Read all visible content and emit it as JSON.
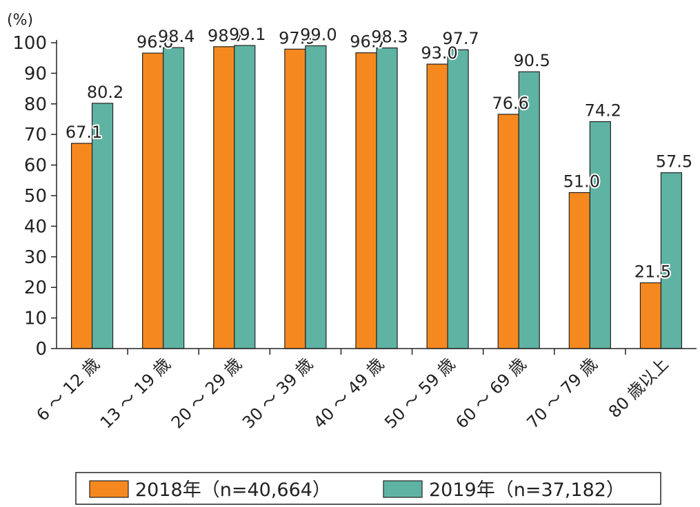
{
  "chart_data": {
    "type": "bar",
    "unit_label": "(%)",
    "categories": [
      "6 ～ 12 歳",
      "13 ～ 19 歳",
      "20 ～ 29 歳",
      "30 ～ 39 歳",
      "40 ～ 49 歳",
      "50 ～ 59 歳",
      "60 ～ 69 歳",
      "70 ～ 79 歳",
      "80 歳以上"
    ],
    "series": [
      {
        "name": "2018年（n=40,664）",
        "color": "#f5891f",
        "values": [
          67.1,
          96.6,
          98.7,
          97.9,
          96.7,
          93.0,
          76.6,
          51.0,
          21.5
        ]
      },
      {
        "name": "2019年（n=37,182）",
        "color": "#5fb3a3",
        "values": [
          80.2,
          98.4,
          99.1,
          99.0,
          98.3,
          97.7,
          90.5,
          74.2,
          57.5
        ]
      }
    ],
    "ylim": [
      0,
      100
    ],
    "yticks": [
      0,
      10,
      20,
      30,
      40,
      50,
      60,
      70,
      80,
      90,
      100
    ],
    "grid": false,
    "legend_position": "bottom"
  }
}
